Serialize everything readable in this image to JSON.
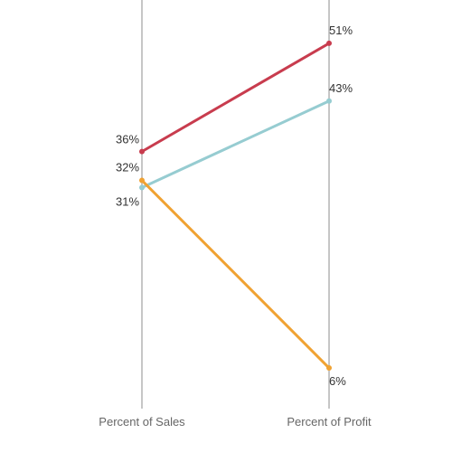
{
  "chart_data": {
    "type": "line",
    "categories": [
      "Percent of Sales",
      "Percent of Profit"
    ],
    "ylim": [
      0,
      60
    ],
    "grid": false,
    "series": [
      {
        "values": [
          36,
          51
        ],
        "labels": [
          "36%",
          "51%"
        ],
        "color": "#c83c4e"
      },
      {
        "values": [
          31,
          43
        ],
        "labels": [
          "31%",
          "43%"
        ],
        "color": "#96ccd1"
      },
      {
        "values": [
          32,
          6
        ],
        "labels": [
          "32%",
          "6%"
        ],
        "color": "#f0a232"
      }
    ]
  }
}
